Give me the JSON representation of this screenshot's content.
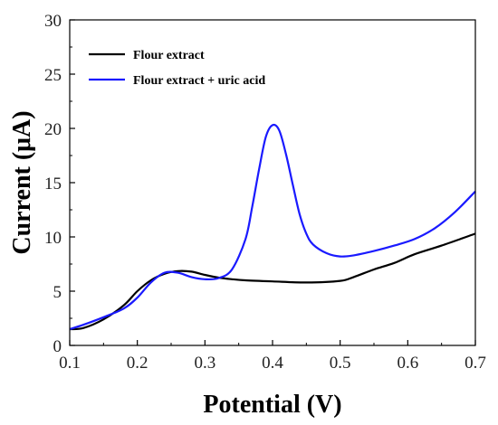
{
  "chart_data": {
    "type": "line",
    "title": "",
    "xlabel": "Potential (V)",
    "ylabel": "Current (μA)",
    "xlim": [
      0.1,
      0.7
    ],
    "ylim": [
      0,
      30
    ],
    "xticks": [
      "0.1",
      "0.2",
      "0.3",
      "0.4",
      "0.5",
      "0.6",
      "0.7"
    ],
    "yticks": [
      "0",
      "5",
      "10",
      "15",
      "20",
      "25",
      "30"
    ],
    "grid": false,
    "legend_position": "top-left",
    "series": [
      {
        "name": "Flour extract",
        "color": "#000000",
        "x": [
          0.1,
          0.12,
          0.15,
          0.18,
          0.2,
          0.22,
          0.24,
          0.26,
          0.28,
          0.3,
          0.32,
          0.34,
          0.36,
          0.4,
          0.45,
          0.5,
          0.52,
          0.55,
          0.58,
          0.61,
          0.65,
          0.7
        ],
        "y": [
          1.5,
          1.6,
          2.4,
          3.7,
          5.0,
          6.0,
          6.6,
          6.85,
          6.8,
          6.5,
          6.25,
          6.1,
          6.0,
          5.9,
          5.8,
          5.95,
          6.3,
          7.0,
          7.6,
          8.4,
          9.2,
          10.3
        ]
      },
      {
        "name": "Flour extract + uric acid",
        "color": "#1a1aff",
        "x": [
          0.1,
          0.12,
          0.15,
          0.18,
          0.2,
          0.22,
          0.24,
          0.26,
          0.28,
          0.3,
          0.32,
          0.34,
          0.36,
          0.37,
          0.38,
          0.39,
          0.4,
          0.41,
          0.42,
          0.43,
          0.44,
          0.45,
          0.46,
          0.48,
          0.5,
          0.52,
          0.55,
          0.58,
          0.61,
          0.64,
          0.67,
          0.7
        ],
        "y": [
          1.5,
          1.9,
          2.6,
          3.4,
          4.4,
          5.8,
          6.7,
          6.7,
          6.3,
          6.1,
          6.2,
          7.0,
          9.8,
          12.8,
          16.2,
          19.2,
          20.3,
          19.8,
          17.6,
          14.8,
          12.1,
          10.3,
          9.3,
          8.5,
          8.2,
          8.3,
          8.7,
          9.2,
          9.8,
          10.8,
          12.3,
          14.2
        ]
      }
    ]
  }
}
